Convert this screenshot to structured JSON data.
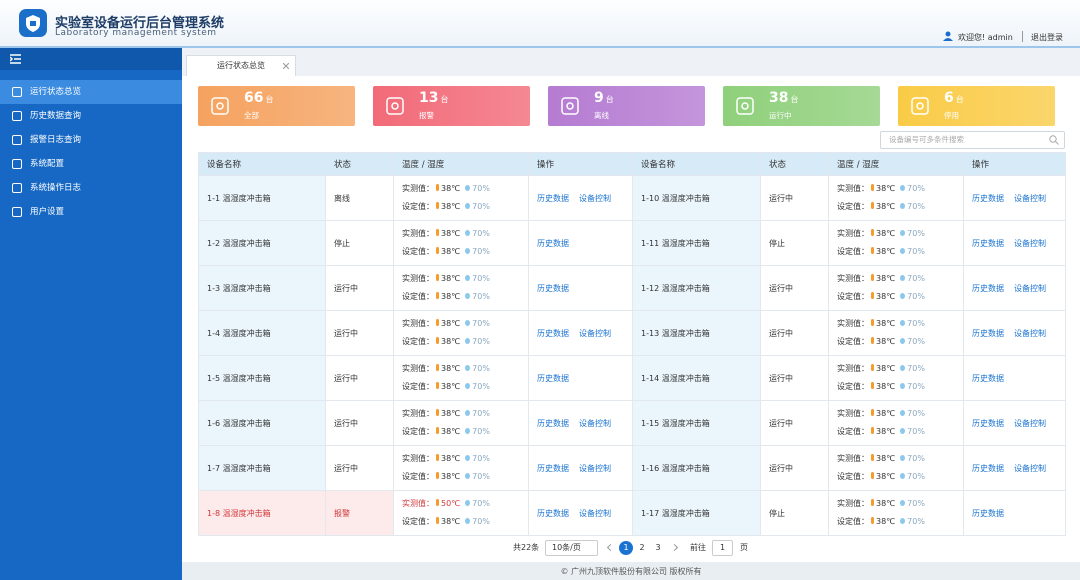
{
  "header": {
    "title": "实验室设备运行后台管理系统",
    "subtitle": "Laboratory management system",
    "welcome": "欢迎您!",
    "user": "admin",
    "logout": "退出登录"
  },
  "sidebar": {
    "items": [
      "运行状态总览",
      "历史数据查询",
      "报警日志查询",
      "系统配置",
      "系统操作日志",
      "用户设置"
    ]
  },
  "tab": {
    "label": "运行状态总览"
  },
  "stats": [
    {
      "count": 66,
      "unit": "台",
      "label": "全部",
      "color": "#f5a25f"
    },
    {
      "count": 13,
      "unit": "台",
      "label": "报警",
      "color": "#f26a78"
    },
    {
      "count": 9,
      "unit": "台",
      "label": "离线",
      "color": "#b57bd2"
    },
    {
      "count": 38,
      "unit": "台",
      "label": "运行中",
      "color": "#8fd07b"
    },
    {
      "count": 6,
      "unit": "台",
      "label": "停用",
      "color": "#f9cb46"
    }
  ],
  "search": {
    "placeholder": "设备编号可多条件搜索"
  },
  "table": {
    "headers": [
      "设备名称",
      "状态",
      "温度 / 湿度",
      "操作"
    ],
    "measured_label": "实测值：",
    "set_label": "设定值：",
    "left": [
      {
        "name": "1-1 温湿度冲击箱",
        "status": "离线",
        "measured_temp": "38℃",
        "measured_humidity": "70%",
        "set_temp": "38℃",
        "set_humidity": "70%",
        "actions": [
          "历史数据",
          "设备控制"
        ]
      },
      {
        "name": "1-2 温湿度冲击箱",
        "status": "停止",
        "measured_temp": "38℃",
        "measured_humidity": "70%",
        "set_temp": "38℃",
        "set_humidity": "70%",
        "actions": [
          "历史数据"
        ]
      },
      {
        "name": "1-3 温湿度冲击箱",
        "status": "运行中",
        "measured_temp": "38℃",
        "measured_humidity": "70%",
        "set_temp": "38℃",
        "set_humidity": "70%",
        "actions": [
          "历史数据"
        ]
      },
      {
        "name": "1-4 温湿度冲击箱",
        "status": "运行中",
        "measured_temp": "38℃",
        "measured_humidity": "70%",
        "set_temp": "38℃",
        "set_humidity": "70%",
        "actions": [
          "历史数据",
          "设备控制"
        ]
      },
      {
        "name": "1-5 温湿度冲击箱",
        "status": "运行中",
        "measured_temp": "38℃",
        "measured_humidity": "70%",
        "set_temp": "38℃",
        "set_humidity": "70%",
        "actions": [
          "历史数据"
        ]
      },
      {
        "name": "1-6 温湿度冲击箱",
        "status": "运行中",
        "measured_temp": "38℃",
        "measured_humidity": "70%",
        "set_temp": "38℃",
        "set_humidity": "70%",
        "actions": [
          "历史数据",
          "设备控制"
        ]
      },
      {
        "name": "1-7 温湿度冲击箱",
        "status": "运行中",
        "measured_temp": "38℃",
        "measured_humidity": "70%",
        "set_temp": "38℃",
        "set_humidity": "70%",
        "actions": [
          "历史数据",
          "设备控制"
        ]
      },
      {
        "name": "1-8 温湿度冲击箱",
        "status": "报警",
        "measured_temp": "50℃",
        "measured_humidity": "70%",
        "set_temp": "38℃",
        "set_humidity": "70%",
        "actions": [
          "历史数据",
          "设备控制"
        ],
        "alarm": true
      }
    ],
    "right": [
      {
        "name": "1-10 温湿度冲击箱",
        "status": "运行中",
        "measured_temp": "38℃",
        "measured_humidity": "70%",
        "set_temp": "38℃",
        "set_humidity": "70%",
        "actions": [
          "历史数据",
          "设备控制"
        ]
      },
      {
        "name": "1-11 温湿度冲击箱",
        "status": "停止",
        "measured_temp": "38℃",
        "measured_humidity": "70%",
        "set_temp": "38℃",
        "set_humidity": "70%",
        "actions": [
          "历史数据",
          "设备控制"
        ]
      },
      {
        "name": "1-12 温湿度冲击箱",
        "status": "运行中",
        "measured_temp": "38℃",
        "measured_humidity": "70%",
        "set_temp": "38℃",
        "set_humidity": "70%",
        "actions": [
          "历史数据",
          "设备控制"
        ]
      },
      {
        "name": "1-13 温湿度冲击箱",
        "status": "运行中",
        "measured_temp": "38℃",
        "measured_humidity": "70%",
        "set_temp": "38℃",
        "set_humidity": "70%",
        "actions": [
          "历史数据",
          "设备控制"
        ]
      },
      {
        "name": "1-14 温湿度冲击箱",
        "status": "运行中",
        "measured_temp": "38℃",
        "measured_humidity": "70%",
        "set_temp": "38℃",
        "set_humidity": "70%",
        "actions": [
          "历史数据"
        ]
      },
      {
        "name": "1-15 温湿度冲击箱",
        "status": "运行中",
        "measured_temp": "38℃",
        "measured_humidity": "70%",
        "set_temp": "38℃",
        "set_humidity": "70%",
        "actions": [
          "历史数据",
          "设备控制"
        ]
      },
      {
        "name": "1-16 温湿度冲击箱",
        "status": "运行中",
        "measured_temp": "38℃",
        "measured_humidity": "70%",
        "set_temp": "38℃",
        "set_humidity": "70%",
        "actions": [
          "历史数据",
          "设备控制"
        ]
      },
      {
        "name": "1-17 温湿度冲击箱",
        "status": "停止",
        "measured_temp": "38℃",
        "measured_humidity": "70%",
        "set_temp": "38℃",
        "set_humidity": "70%",
        "actions": [
          "历史数据"
        ]
      }
    ]
  },
  "pagination": {
    "total": "共22条",
    "page_size": "10条/页",
    "pages": [
      1,
      2,
      3
    ],
    "goto": "前往",
    "goto_value": 1,
    "page_unit": "页"
  },
  "footer": "© 广州九顶软件股份有限公司 版权所有"
}
